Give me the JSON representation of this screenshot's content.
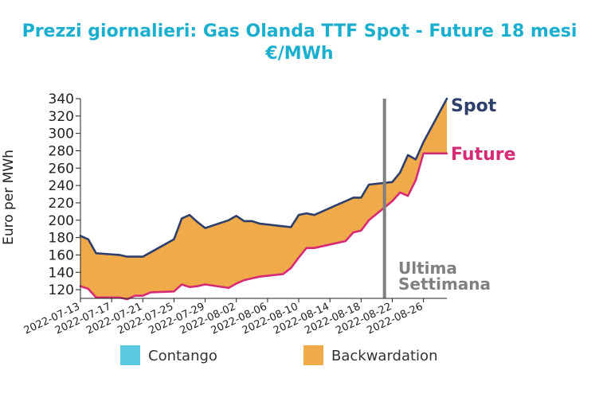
{
  "chart_data": {
    "type": "area",
    "title": "Prezzi giornalieri: Gas Olanda TTF Spot - Future 18 mesi",
    "subtitle": "€/MWh",
    "ylabel": "Euro per MWh",
    "xlabel": "",
    "ylim": [
      110,
      340
    ],
    "yticks": [
      120,
      140,
      160,
      180,
      200,
      220,
      240,
      260,
      280,
      300,
      320,
      340
    ],
    "xticks": [
      "2022-07-13",
      "2022-07-17",
      "2022-07-21",
      "2022-07-25",
      "2022-07-29",
      "2022-08-02",
      "2022-08-06",
      "2022-08-10",
      "2022-08-14",
      "2022-08-18",
      "2022-08-22",
      "2022-08-26"
    ],
    "x": [
      "2022-07-13",
      "2022-07-14",
      "2022-07-15",
      "2022-07-18",
      "2022-07-19",
      "2022-07-20",
      "2022-07-21",
      "2022-07-22",
      "2022-07-25",
      "2022-07-26",
      "2022-07-27",
      "2022-07-28",
      "2022-07-29",
      "2022-08-01",
      "2022-08-02",
      "2022-08-03",
      "2022-08-04",
      "2022-08-05",
      "2022-08-08",
      "2022-08-09",
      "2022-08-10",
      "2022-08-11",
      "2022-08-12",
      "2022-08-15",
      "2022-08-16",
      "2022-08-17",
      "2022-08-18",
      "2022-08-19",
      "2022-08-22",
      "2022-08-23",
      "2022-08-24",
      "2022-08-25",
      "2022-08-26",
      "2022-08-29"
    ],
    "series": [
      {
        "name": "Spot",
        "color": "#2e3f6b",
        "values": [
          182,
          178,
          162,
          160,
          158,
          158,
          158,
          163,
          178,
          202,
          206,
          198,
          191,
          200,
          205,
          199,
          199,
          196,
          193,
          192,
          206,
          208,
          206,
          218,
          222,
          226,
          226,
          241,
          244,
          255,
          275,
          270,
          290,
          340
        ]
      },
      {
        "name": "Future",
        "color": "#d62a76",
        "values": [
          124,
          121,
          111,
          111,
          109,
          113,
          113,
          117,
          118,
          126,
          123,
          124,
          126,
          122,
          127,
          131,
          133,
          135,
          138,
          145,
          157,
          168,
          168,
          174,
          176,
          186,
          188,
          200,
          222,
          232,
          228,
          246,
          277,
          277
        ]
      }
    ],
    "fill_colors": {
      "Contango": "#5ac8e0",
      "Backwardation": "#f0aa4a"
    },
    "legend": [
      "Contango",
      "Backwardation"
    ],
    "legend_position": "bottom",
    "vline": {
      "x": "2022-08-21",
      "color": "#808080"
    },
    "annotation": {
      "line1": "Ultima",
      "line2": "Settimana",
      "color": "#808080"
    },
    "title_color": "#1aafcf"
  }
}
